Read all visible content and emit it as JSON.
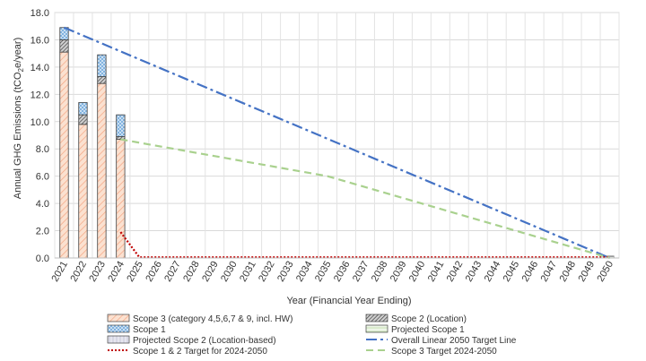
{
  "chart_data": {
    "type": "bar",
    "xlabel": "Year (Financial Year Ending)",
    "ylabel_prefix": "Annual GHG Emissions (tCO",
    "ylabel_sub": "2",
    "ylabel_suffix": "e/year)",
    "ylim": [
      0,
      18
    ],
    "yticks": [
      "0.0",
      "2.0",
      "4.0",
      "6.0",
      "8.0",
      "10.0",
      "12.0",
      "14.0",
      "16.0",
      "18.0"
    ],
    "ytick_values": [
      0,
      2,
      4,
      6,
      8,
      10,
      12,
      14,
      16,
      18
    ],
    "categories": [
      "2021",
      "2022",
      "2023",
      "2024",
      "2025",
      "2026",
      "2027",
      "2028",
      "2029",
      "2030",
      "2031",
      "2032",
      "2033",
      "2034",
      "2035",
      "2036",
      "2037",
      "2038",
      "2039",
      "2040",
      "2041",
      "2042",
      "2043",
      "2044",
      "2045",
      "2046",
      "2047",
      "2048",
      "2049",
      "2050"
    ],
    "grid": true,
    "legend_position": "bottom",
    "stacked_series": [
      {
        "name": "Scope 3 (category 4,5,6,7 & 9, incl. HW)",
        "key": "scope3",
        "color": "#f8cbad",
        "values": [
          15.1,
          9.8,
          12.8,
          8.7
        ]
      },
      {
        "name": "Scope 2 (Location)",
        "key": "scope2",
        "color": "#7f7f7f",
        "values": [
          0.9,
          0.7,
          0.5,
          0.2
        ]
      },
      {
        "name": "Scope 1",
        "key": "scope1",
        "color": "#bdd7ee",
        "values": [
          0.9,
          0.9,
          1.6,
          1.6
        ]
      }
    ],
    "projected_series": [
      {
        "name": "Projected Scope 1",
        "key": "proj1",
        "color": "#e2efda",
        "values": [
          0.1
        ]
      },
      {
        "name": "Projected Scope 2 (Location-based)",
        "key": "proj2",
        "color": "#d9d9e8",
        "values": [
          0.05
        ]
      }
    ],
    "line_series": [
      {
        "name": "Overall Linear 2050 Target Line",
        "key": "overall",
        "color": "#4472c4",
        "dash": "12 4 3 4",
        "x": [
          "2021",
          "2050"
        ],
        "y": [
          16.9,
          0.0
        ]
      },
      {
        "name": "Scope 1 & 2 Target for 2024-2050",
        "key": "s12",
        "color": "#c00000",
        "dash": "2 2",
        "x": [
          "2024",
          "2025",
          "2026",
          "2050"
        ],
        "y": [
          1.9,
          0.05,
          0.05,
          0.05
        ]
      },
      {
        "name": "Scope 3 Target 2024-2050",
        "key": "s3",
        "color": "#a9d18e",
        "dash": "8 5",
        "x": [
          "2024",
          "2035",
          "2050"
        ],
        "y": [
          8.7,
          6.0,
          0.0
        ]
      }
    ],
    "legend": [
      {
        "label": "Scope 3 (category 4,5,6,7 & 9, incl. HW)",
        "kind": "bar",
        "key": "scope3"
      },
      {
        "label": "Scope 2 (Location)",
        "kind": "bar",
        "key": "scope2"
      },
      {
        "label": "Scope 1",
        "kind": "bar",
        "key": "scope1"
      },
      {
        "label": "Projected Scope 1",
        "kind": "bar",
        "key": "proj1"
      },
      {
        "label": "Projected Scope 2 (Location-based)",
        "kind": "bar",
        "key": "proj2"
      },
      {
        "label": "Overall Linear 2050 Target Line",
        "kind": "line",
        "key": "overall"
      },
      {
        "label": "Scope 1 & 2 Target for 2024-2050",
        "kind": "line",
        "key": "s12"
      },
      {
        "label": "Scope 3 Target 2024-2050",
        "kind": "line",
        "key": "s3"
      }
    ]
  }
}
